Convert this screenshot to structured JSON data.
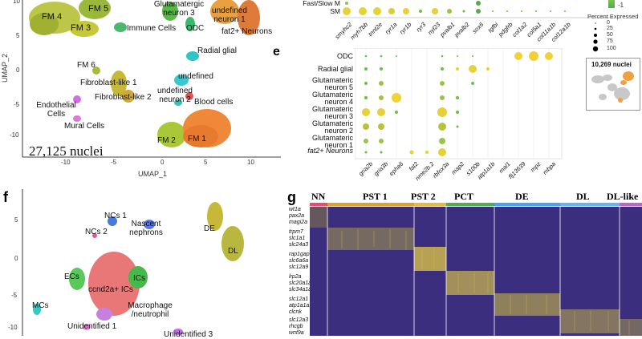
{
  "panel_d": {
    "axis_y": "UMAP_2",
    "axis_x": "UMAP_1",
    "y_ticks": [
      "10",
      "5",
      "0",
      "-5",
      "-10"
    ],
    "x_ticks": [
      "-10",
      "-5",
      "0",
      "5",
      "10"
    ],
    "nuclei": "27,125 nuclei",
    "clusters": [
      "FM 4",
      "FM 5",
      "FM 3",
      "Glutamatergic neuron 3",
      "undefined neuron 1",
      "fat2+ Neurons",
      "Immune Cells",
      "ODC",
      "Radial glial",
      "FM 6",
      "Fibroblast-like 1",
      "undefined",
      "Fibroblast-like 2",
      "undefined neuron 2",
      "Blood cells",
      "Endothelial Cells",
      "Mural Cells",
      "FM 2",
      "FM 1"
    ]
  },
  "panel_top": {
    "row_labels": [
      "Fast/Slow M",
      "SM"
    ],
    "genes": [
      "smyhc2",
      "myh7bb",
      "tnnt2e",
      "ryr1a",
      "ryr1b",
      "ryr3",
      "nyl23",
      "pvalb1",
      "pvalb2",
      "sox6",
      "tgfbi",
      "pdgfrb",
      "col1a2",
      "col5a1",
      "col11a1b",
      "col12a1b"
    ],
    "legend_low": "-1",
    "legend_title": "Percent Expressed",
    "legend_sizes": [
      "0",
      "25",
      "50",
      "75",
      "100"
    ]
  },
  "panel_e": {
    "letter": "e",
    "rows": [
      "ODC",
      "Radial glial",
      "Glutamateric neuron 5",
      "Glutamateric neuron 4",
      "Glutamateric neuron 3",
      "Glutamateric neuron 2",
      "Glutamateric neuron 1",
      "fat2+ Neurons"
    ],
    "genes": [
      "gria2b",
      "gria3b",
      "epha6",
      "fat2",
      "nme2b.2",
      "rbfox3a",
      "map2",
      "s100b",
      "atp1a1b",
      "mal1",
      "flj13639",
      "mpz",
      "mbpa"
    ],
    "inset_title": "10,269 nuclei"
  },
  "panel_f": {
    "letter": "f",
    "clusters": [
      "NCs 1",
      "NCs 2",
      "Nascent nephrons",
      "DE",
      "DL",
      "ECs",
      "ccnd2a+ ICs",
      "ICs",
      "MCs",
      "Macrophage /neutrophil",
      "Unidentified 1",
      "Unidentified 3"
    ],
    "y_ticks": [
      "5",
      "0",
      "-5",
      "-10"
    ]
  },
  "panel_g": {
    "letter": "g",
    "segments": [
      "NN",
      "PST 1",
      "PST 2",
      "PCT",
      "DE",
      "DL",
      "DL-like"
    ],
    "segment_colors": [
      "#e74c6e",
      "#e0a030",
      "#e8b840",
      "#4caf50",
      "#42a5f5",
      "#64b5f6",
      "#ba68c8"
    ],
    "genes": [
      "wt1a",
      "pax2a",
      "magi2a",
      "trpm7",
      "slc1a1",
      "slc24a3",
      "rap1gap",
      "slc6a6a",
      "slc12a9",
      "lrp2a",
      "slc20a1a",
      "slc34a1a",
      "slc12a1",
      "atp1a1a.4",
      "clcnk",
      "slc12a3",
      "rhcgb",
      "wnt9a"
    ]
  },
  "colors": {
    "fm": "#b6c43a",
    "fm_orange": "#f08a3a",
    "green": "#4caf50",
    "cyan": "#2ec4d4",
    "pink": "#e86cc8",
    "heat_bg": "#3a2d7a",
    "heat_hi": "#f5d142"
  }
}
